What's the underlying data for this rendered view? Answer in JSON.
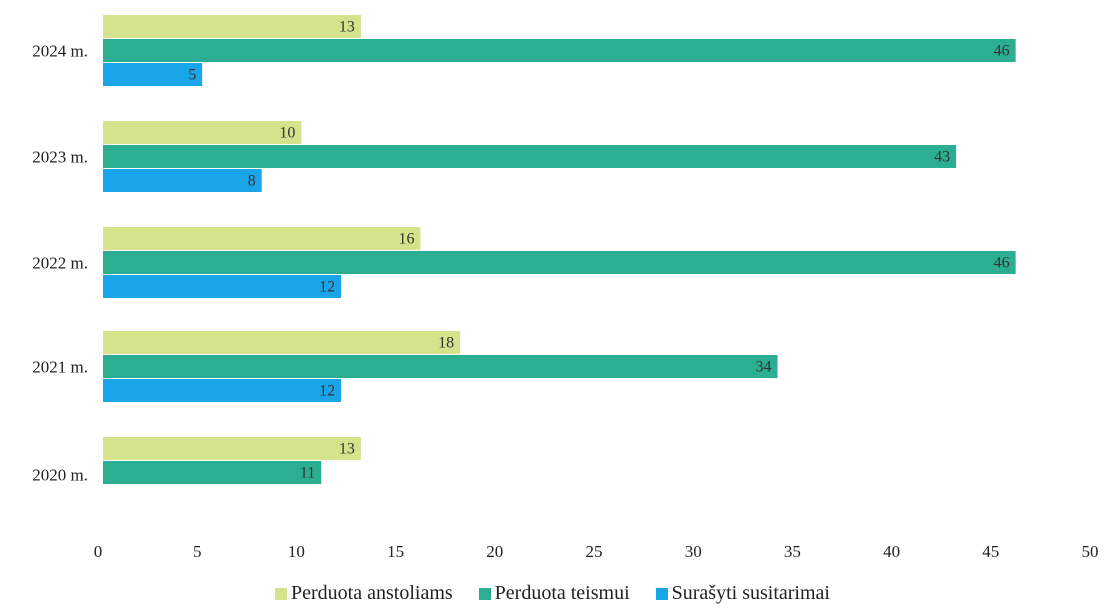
{
  "chart_data": {
    "type": "bar",
    "orientation": "horizontal",
    "categories": [
      "2024 m.",
      "2023 m.",
      "2022 m.",
      "2021 m.",
      "2020 m."
    ],
    "series": [
      {
        "name": "Perduota anstoliams",
        "color": "#d4e38c",
        "values": [
          13,
          10,
          16,
          18,
          13
        ]
      },
      {
        "name": "Perduota teismui",
        "color": "#2bae92",
        "values": [
          46,
          43,
          46,
          34,
          11
        ]
      },
      {
        "name": "Surašyti susitarimai",
        "color": "#1aa5e8",
        "values": [
          5,
          8,
          12,
          12,
          null
        ]
      }
    ],
    "xlim": [
      0,
      50
    ],
    "xticks": [
      "0",
      "5",
      "10",
      "15",
      "20",
      "25",
      "30",
      "35",
      "40",
      "45",
      "50"
    ],
    "grid": false,
    "legend_position": "bottom"
  }
}
